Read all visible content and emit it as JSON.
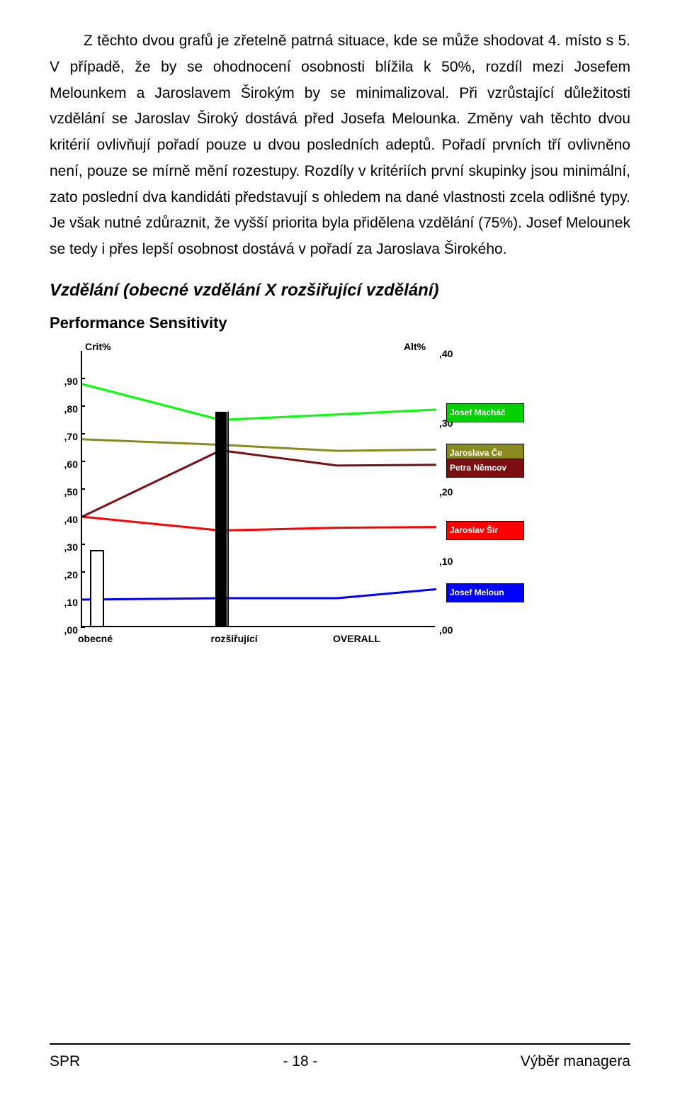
{
  "paragraph": "Z těchto dvou grafů je zřetelně patrná situace, kde se může shodovat 4. místo s 5. V případě, že by se ohodnocení osobnosti blížila k 50%, rozdíl mezi Josefem Melounkem a Jaroslavem Širokým by se minimalizoval. Při vzrůstající důležitosti vzdělání se Jaroslav Široký dostává před Josefa Melounka. Změny vah těchto dvou kritérií ovlivňují pořadí pouze u dvou posledních adeptů. Pořadí prvních tří ovlivněno není, pouze se mírně mění rozestupy. Rozdíly v kritériích první skupinky jsou minimální, zato poslední dva kandidáti představují s ohledem na dané vlastnosti zcela odlišné typy. Je však nutné zdůraznit, že vyšší priorita byla přidělena vzdělání (75%). Josef Melounek se tedy i přes lepší osobnost dostává v pořadí za Jaroslava Širokého.",
  "heading_italic": "Vzdělání (obecné vzdělání X rozšiřující vzdělání)",
  "heading_bold": "Performance Sensitivity",
  "chart": {
    "crit_label": "Crit%",
    "alt_label": "Alt%",
    "left_axis": {
      "ticks": [
        ",90",
        ",80",
        ",70",
        ",60",
        ",50",
        ",40",
        ",30",
        ",20",
        ",10",
        ",00"
      ],
      "domain_top": 1.0,
      "domain_bottom": 0.0
    },
    "right_axis": {
      "ticks": [
        ",40",
        ",30",
        ",20",
        ",10",
        ",00"
      ],
      "domain_top": 0.4,
      "domain_bottom": 0.0
    },
    "x_labels": [
      "obecné",
      "rozšiřující",
      "OVERALL"
    ],
    "x_positions": [
      0.0,
      0.375,
      0.72
    ],
    "crit_bars": [
      {
        "x": 0.025,
        "height": 0.28
      },
      {
        "x": 0.38,
        "height_top": 0.78,
        "height_fill": 0.73
      }
    ],
    "legend": [
      {
        "label": "Josef Macháč",
        "bg": "#00d000",
        "alt_y": 0.315
      },
      {
        "label": "Jaroslava Če",
        "bg": "#8a8a1e",
        "alt_y": 0.257
      },
      {
        "label": "Petra Němcov",
        "bg": "#7a0e12",
        "alt_y": 0.235
      },
      {
        "label": "Jaroslav Šir",
        "bg": "#ff0000",
        "alt_y": 0.145
      },
      {
        "label": "Josef Meloun",
        "bg": "#0000ff",
        "alt_y": 0.055
      }
    ],
    "series": [
      {
        "color": "#00ff00",
        "width": 3,
        "y": [
          0.88,
          0.75,
          0.77,
          0.315
        ]
      },
      {
        "color": "#8a8a1e",
        "width": 3,
        "y": [
          0.68,
          0.66,
          0.638,
          0.257
        ]
      },
      {
        "color": "#7a0e12",
        "width": 3,
        "y": [
          0.4,
          0.64,
          0.585,
          0.235
        ]
      },
      {
        "color": "#ff0000",
        "width": 3,
        "y": [
          0.4,
          0.35,
          0.36,
          0.145
        ]
      },
      {
        "color": "#0000ff",
        "width": 3,
        "y": [
          0.1,
          0.105,
          0.105,
          0.055
        ]
      }
    ]
  },
  "footer": {
    "left": "SPR",
    "center": "- 18 -",
    "right": "Výběr managera"
  }
}
